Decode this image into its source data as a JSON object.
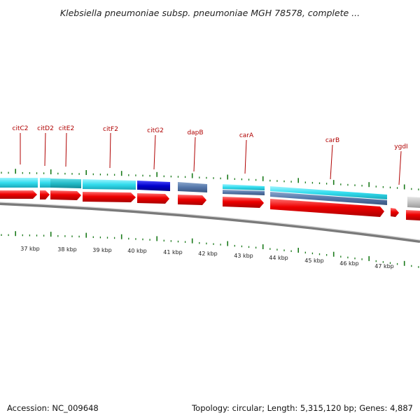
{
  "title": "Klebsiella pneumoniae subsp. pneumoniae MGH 78578, complete ...",
  "colors": {
    "forward_feature": "#ee0000",
    "cyan_feature": "#33ddee",
    "blue_feature": "#0000cc",
    "steel_feature": "#5577aa",
    "grey_feature": "#bbbbbb",
    "tick": "#1a7a1a",
    "label": "#b00000",
    "backbone": "#888888"
  },
  "gene_labels": [
    "citC2",
    "citD2",
    "citE2",
    "citF2",
    "citG2",
    "dapB",
    "carA",
    "carB",
    "ygdI"
  ],
  "tick_labels": [
    "37 kbp",
    "38 kbp",
    "39 kbp",
    "40 kbp",
    "41 kbp",
    "42 kbp",
    "43 kbp",
    "44 kbp",
    "45 kbp",
    "46 kbp",
    "47 kbp"
  ],
  "footer": {
    "accession": "Accession: NC_009648",
    "topology": "Topology: circular; Length: 5,315,120 bp; Genes: 4,887"
  }
}
